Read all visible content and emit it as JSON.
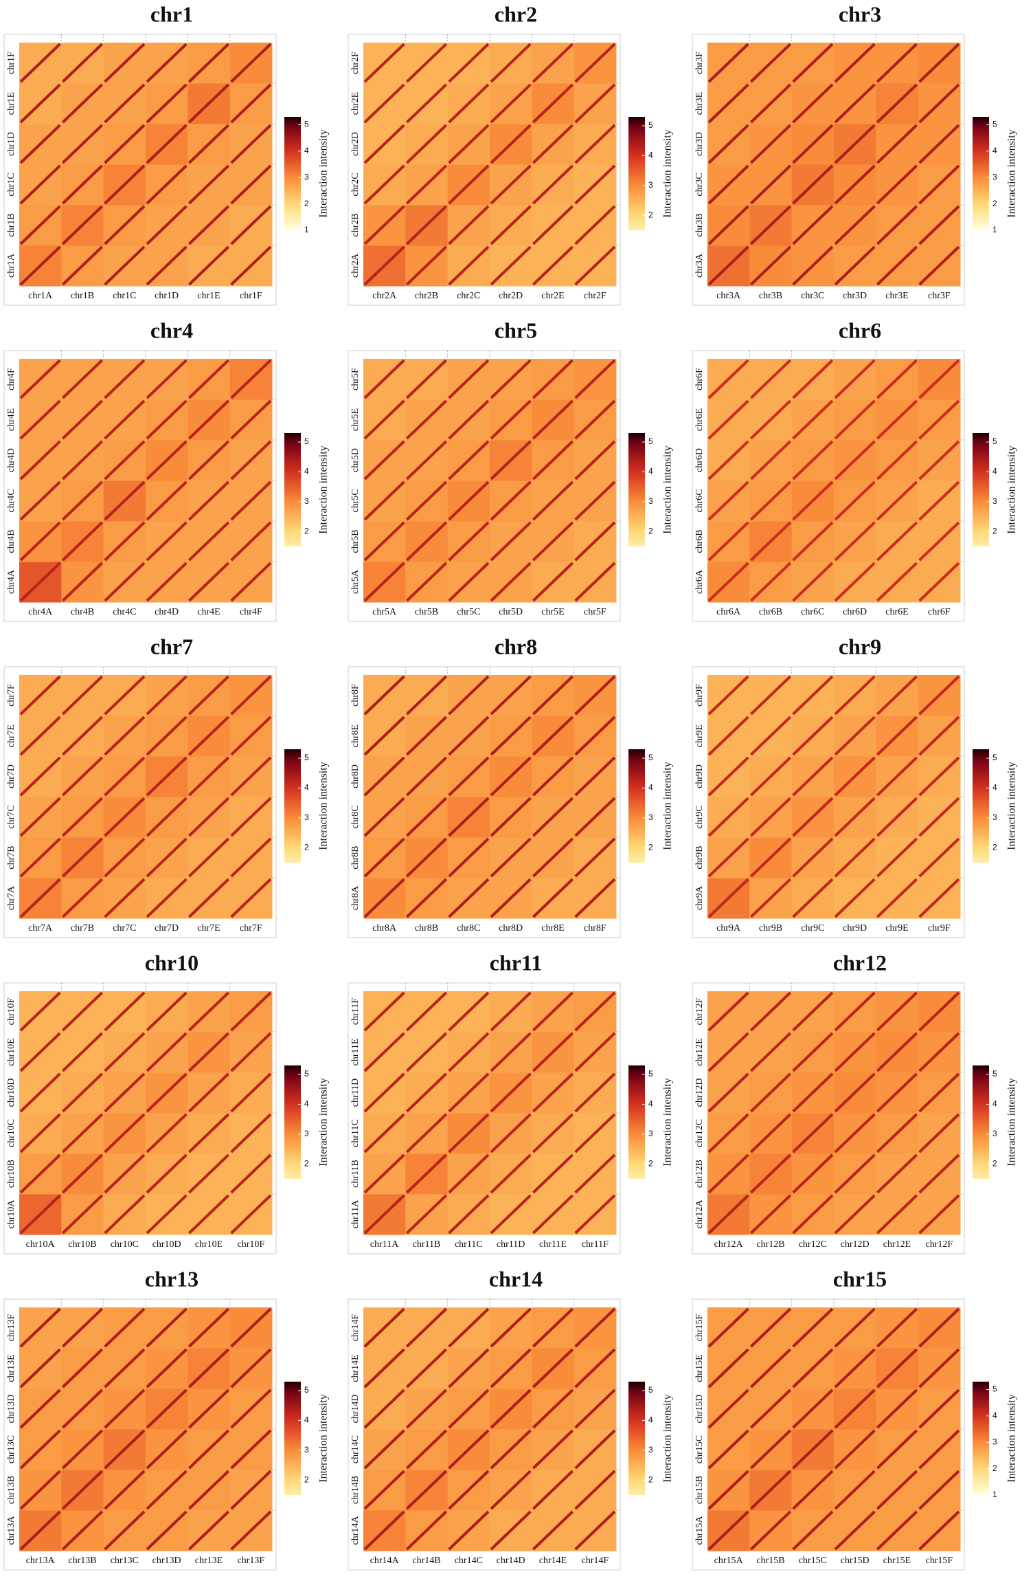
{
  "chart_data": [
    {
      "type": "heatmap",
      "title": "chr1",
      "categories": [
        "chr1A",
        "chr1B",
        "chr1C",
        "chr1D",
        "chr1E",
        "chr1F"
      ],
      "values": [
        [
          3.1,
          2.8,
          2.7,
          2.7,
          2.6,
          2.6
        ],
        [
          2.8,
          3.1,
          2.8,
          2.7,
          2.7,
          2.6
        ],
        [
          2.7,
          2.8,
          3.1,
          2.8,
          2.7,
          2.7
        ],
        [
          2.7,
          2.7,
          2.8,
          3.1,
          2.8,
          2.7
        ],
        [
          2.6,
          2.7,
          2.7,
          2.8,
          3.2,
          2.8
        ],
        [
          2.6,
          2.6,
          2.7,
          2.7,
          2.8,
          3.0
        ]
      ],
      "stripe_value": 4.4,
      "colorbar_label": "Interaction intensity",
      "clim": [
        1,
        5.3
      ],
      "cticks": [
        1,
        2,
        3,
        4,
        5
      ]
    },
    {
      "type": "heatmap",
      "title": "chr2",
      "categories": [
        "chr2A",
        "chr2B",
        "chr2C",
        "chr2D",
        "chr2E",
        "chr2F"
      ],
      "values": [
        [
          3.3,
          2.9,
          2.6,
          2.5,
          2.5,
          2.5
        ],
        [
          2.9,
          3.2,
          2.7,
          2.6,
          2.5,
          2.5
        ],
        [
          2.6,
          2.7,
          3.0,
          2.7,
          2.6,
          2.5
        ],
        [
          2.5,
          2.6,
          2.7,
          3.0,
          2.7,
          2.6
        ],
        [
          2.5,
          2.5,
          2.6,
          2.7,
          3.0,
          2.7
        ],
        [
          2.5,
          2.5,
          2.5,
          2.6,
          2.7,
          2.9
        ]
      ],
      "stripe_value": 4.3,
      "colorbar_label": "Interaction intensity",
      "clim": [
        1.5,
        5.3
      ],
      "cticks": [
        2,
        3,
        4,
        5
      ]
    },
    {
      "type": "heatmap",
      "title": "chr3",
      "categories": [
        "chr3A",
        "chr3B",
        "chr3C",
        "chr3D",
        "chr3E",
        "chr3F"
      ],
      "values": [
        [
          3.3,
          3.0,
          2.9,
          2.8,
          2.8,
          2.8
        ],
        [
          3.0,
          3.2,
          2.9,
          2.9,
          2.8,
          2.8
        ],
        [
          2.9,
          2.9,
          3.2,
          3.0,
          2.9,
          2.8
        ],
        [
          2.8,
          2.9,
          3.0,
          3.2,
          2.9,
          2.9
        ],
        [
          2.8,
          2.8,
          2.9,
          2.9,
          3.1,
          2.9
        ],
        [
          2.8,
          2.8,
          2.8,
          2.9,
          2.9,
          3.0
        ]
      ],
      "stripe_value": 4.4,
      "colorbar_label": "Interaction intensity",
      "clim": [
        1,
        5.3
      ],
      "cticks": [
        1,
        2,
        3,
        4,
        5
      ]
    },
    {
      "type": "heatmap",
      "title": "chr4",
      "categories": [
        "chr4A",
        "chr4B",
        "chr4C",
        "chr4D",
        "chr4E",
        "chr4F"
      ],
      "values": [
        [
          3.6,
          2.9,
          2.7,
          2.7,
          2.7,
          2.7
        ],
        [
          2.9,
          3.1,
          2.8,
          2.7,
          2.7,
          2.7
        ],
        [
          2.7,
          2.8,
          3.2,
          2.8,
          2.7,
          2.7
        ],
        [
          2.7,
          2.7,
          2.8,
          3.0,
          2.8,
          2.7
        ],
        [
          2.7,
          2.7,
          2.7,
          2.8,
          3.0,
          2.8
        ],
        [
          2.7,
          2.7,
          2.7,
          2.7,
          2.8,
          3.1
        ]
      ],
      "stripe_value": 4.3,
      "colorbar_label": "Interaction intensity",
      "clim": [
        1.5,
        5.3
      ],
      "cticks": [
        2,
        3,
        4,
        5
      ]
    },
    {
      "type": "heatmap",
      "title": "chr5",
      "categories": [
        "chr5A",
        "chr5B",
        "chr5C",
        "chr5D",
        "chr5E",
        "chr5F"
      ],
      "values": [
        [
          3.1,
          2.8,
          2.7,
          2.7,
          2.6,
          2.6
        ],
        [
          2.8,
          3.0,
          2.8,
          2.7,
          2.7,
          2.6
        ],
        [
          2.7,
          2.8,
          3.0,
          2.8,
          2.7,
          2.7
        ],
        [
          2.7,
          2.7,
          2.8,
          3.1,
          2.8,
          2.7
        ],
        [
          2.6,
          2.7,
          2.7,
          2.8,
          3.0,
          2.8
        ],
        [
          2.6,
          2.6,
          2.7,
          2.7,
          2.8,
          2.9
        ]
      ],
      "stripe_value": 4.3,
      "colorbar_label": "Interaction intensity",
      "clim": [
        1.5,
        5.3
      ],
      "cticks": [
        2,
        3,
        4,
        5
      ]
    },
    {
      "type": "heatmap",
      "title": "chr6",
      "categories": [
        "chr6A",
        "chr6B",
        "chr6C",
        "chr6D",
        "chr6E",
        "chr6F"
      ],
      "values": [
        [
          3.0,
          2.8,
          2.7,
          2.6,
          2.6,
          2.6
        ],
        [
          2.8,
          3.1,
          2.8,
          2.7,
          2.6,
          2.6
        ],
        [
          2.7,
          2.8,
          3.0,
          2.8,
          2.7,
          2.6
        ],
        [
          2.6,
          2.7,
          2.8,
          2.9,
          2.8,
          2.7
        ],
        [
          2.6,
          2.6,
          2.7,
          2.8,
          2.9,
          2.8
        ],
        [
          2.6,
          2.6,
          2.6,
          2.7,
          2.8,
          3.0
        ]
      ],
      "stripe_value": 4.1,
      "colorbar_label": "Interaction intensity",
      "clim": [
        1.5,
        5.3
      ],
      "cticks": [
        2,
        3,
        4,
        5
      ]
    },
    {
      "type": "heatmap",
      "title": "chr7",
      "categories": [
        "chr7A",
        "chr7B",
        "chr7C",
        "chr7D",
        "chr7E",
        "chr7F"
      ],
      "values": [
        [
          3.1,
          2.8,
          2.7,
          2.6,
          2.6,
          2.6
        ],
        [
          2.8,
          3.1,
          2.8,
          2.7,
          2.6,
          2.6
        ],
        [
          2.7,
          2.8,
          3.0,
          2.8,
          2.7,
          2.6
        ],
        [
          2.6,
          2.7,
          2.8,
          3.1,
          2.8,
          2.7
        ],
        [
          2.6,
          2.6,
          2.7,
          2.8,
          3.0,
          2.8
        ],
        [
          2.6,
          2.6,
          2.6,
          2.7,
          2.8,
          2.9
        ]
      ],
      "stripe_value": 4.3,
      "colorbar_label": "Interaction intensity",
      "clim": [
        1.5,
        5.3
      ],
      "cticks": [
        2,
        3,
        4,
        5
      ]
    },
    {
      "type": "heatmap",
      "title": "chr8",
      "categories": [
        "chr8A",
        "chr8B",
        "chr8C",
        "chr8D",
        "chr8E",
        "chr8F"
      ],
      "values": [
        [
          3.0,
          2.8,
          2.7,
          2.7,
          2.6,
          2.6
        ],
        [
          2.8,
          3.0,
          2.8,
          2.7,
          2.7,
          2.6
        ],
        [
          2.7,
          2.8,
          3.1,
          2.8,
          2.7,
          2.7
        ],
        [
          2.7,
          2.7,
          2.8,
          3.0,
          2.8,
          2.7
        ],
        [
          2.6,
          2.7,
          2.7,
          2.8,
          3.0,
          2.8
        ],
        [
          2.6,
          2.6,
          2.7,
          2.7,
          2.8,
          2.9
        ]
      ],
      "stripe_value": 4.4,
      "colorbar_label": "Interaction intensity",
      "clim": [
        1.5,
        5.3
      ],
      "cticks": [
        2,
        3,
        4,
        5
      ]
    },
    {
      "type": "heatmap",
      "title": "chr9",
      "categories": [
        "chr9A",
        "chr9B",
        "chr9C",
        "chr9D",
        "chr9E",
        "chr9F"
      ],
      "values": [
        [
          3.2,
          2.7,
          2.6,
          2.5,
          2.5,
          2.5
        ],
        [
          2.7,
          3.0,
          2.7,
          2.6,
          2.5,
          2.5
        ],
        [
          2.6,
          2.7,
          2.9,
          2.7,
          2.6,
          2.5
        ],
        [
          2.5,
          2.6,
          2.7,
          2.9,
          2.7,
          2.6
        ],
        [
          2.5,
          2.5,
          2.6,
          2.7,
          2.9,
          2.7
        ],
        [
          2.5,
          2.5,
          2.5,
          2.6,
          2.7,
          2.9
        ]
      ],
      "stripe_value": 4.2,
      "colorbar_label": "Interaction intensity",
      "clim": [
        1.5,
        5.3
      ],
      "cticks": [
        2,
        3,
        4,
        5
      ]
    },
    {
      "type": "heatmap",
      "title": "chr10",
      "categories": [
        "chr10A",
        "chr10B",
        "chr10C",
        "chr10D",
        "chr10E",
        "chr10F"
      ],
      "values": [
        [
          3.4,
          2.8,
          2.6,
          2.5,
          2.5,
          2.5
        ],
        [
          2.8,
          3.0,
          2.7,
          2.6,
          2.5,
          2.5
        ],
        [
          2.6,
          2.7,
          2.9,
          2.7,
          2.6,
          2.5
        ],
        [
          2.5,
          2.6,
          2.7,
          2.9,
          2.7,
          2.6
        ],
        [
          2.5,
          2.5,
          2.6,
          2.7,
          2.9,
          2.7
        ],
        [
          2.5,
          2.5,
          2.5,
          2.6,
          2.7,
          2.8
        ]
      ],
      "stripe_value": 4.3,
      "colorbar_label": "Interaction intensity",
      "clim": [
        1.5,
        5.3
      ],
      "cticks": [
        2,
        3,
        4,
        5
      ]
    },
    {
      "type": "heatmap",
      "title": "chr11",
      "categories": [
        "chr11A",
        "chr11B",
        "chr11C",
        "chr11D",
        "chr11E",
        "chr11F"
      ],
      "values": [
        [
          3.2,
          2.7,
          2.6,
          2.5,
          2.5,
          2.5
        ],
        [
          2.7,
          3.1,
          2.7,
          2.6,
          2.5,
          2.5
        ],
        [
          2.6,
          2.7,
          3.0,
          2.7,
          2.6,
          2.5
        ],
        [
          2.5,
          2.6,
          2.7,
          2.9,
          2.7,
          2.6
        ],
        [
          2.5,
          2.5,
          2.6,
          2.7,
          2.9,
          2.7
        ],
        [
          2.5,
          2.5,
          2.5,
          2.6,
          2.7,
          2.8
        ]
      ],
      "stripe_value": 4.3,
      "colorbar_label": "Interaction intensity",
      "clim": [
        1.5,
        5.3
      ],
      "cticks": [
        2,
        3,
        4,
        5
      ]
    },
    {
      "type": "heatmap",
      "title": "chr12",
      "categories": [
        "chr12A",
        "chr12B",
        "chr12C",
        "chr12D",
        "chr12E",
        "chr12F"
      ],
      "values": [
        [
          3.2,
          2.9,
          2.8,
          2.7,
          2.7,
          2.7
        ],
        [
          2.9,
          3.1,
          2.9,
          2.8,
          2.7,
          2.7
        ],
        [
          2.8,
          2.9,
          3.1,
          2.9,
          2.8,
          2.7
        ],
        [
          2.7,
          2.8,
          2.9,
          3.0,
          2.9,
          2.8
        ],
        [
          2.7,
          2.7,
          2.8,
          2.9,
          3.0,
          2.9
        ],
        [
          2.7,
          2.7,
          2.7,
          2.8,
          2.9,
          3.0
        ]
      ],
      "stripe_value": 4.3,
      "colorbar_label": "Interaction intensity",
      "clim": [
        1.5,
        5.3
      ],
      "cticks": [
        2,
        3,
        4,
        5
      ]
    },
    {
      "type": "heatmap",
      "title": "chr13",
      "categories": [
        "chr13A",
        "chr13B",
        "chr13C",
        "chr13D",
        "chr13E",
        "chr13F"
      ],
      "values": [
        [
          3.2,
          2.9,
          2.8,
          2.8,
          2.7,
          2.7
        ],
        [
          2.9,
          3.2,
          2.9,
          2.8,
          2.8,
          2.7
        ],
        [
          2.8,
          2.9,
          3.2,
          2.9,
          2.8,
          2.8
        ],
        [
          2.8,
          2.8,
          2.9,
          3.1,
          2.9,
          2.8
        ],
        [
          2.7,
          2.8,
          2.8,
          2.9,
          3.1,
          2.9
        ],
        [
          2.7,
          2.7,
          2.8,
          2.8,
          2.9,
          3.0
        ]
      ],
      "stripe_value": 4.4,
      "colorbar_label": "Interaction intensity",
      "clim": [
        1.5,
        5.3
      ],
      "cticks": [
        2,
        3,
        4,
        5
      ]
    },
    {
      "type": "heatmap",
      "title": "chr14",
      "categories": [
        "chr14A",
        "chr14B",
        "chr14C",
        "chr14D",
        "chr14E",
        "chr14F"
      ],
      "values": [
        [
          3.1,
          2.8,
          2.7,
          2.6,
          2.6,
          2.6
        ],
        [
          2.8,
          3.1,
          2.8,
          2.7,
          2.6,
          2.6
        ],
        [
          2.7,
          2.8,
          3.0,
          2.8,
          2.7,
          2.6
        ],
        [
          2.6,
          2.7,
          2.8,
          3.0,
          2.8,
          2.7
        ],
        [
          2.6,
          2.6,
          2.7,
          2.8,
          3.0,
          2.8
        ],
        [
          2.6,
          2.6,
          2.6,
          2.7,
          2.8,
          2.9
        ]
      ],
      "stripe_value": 4.4,
      "colorbar_label": "Interaction intensity",
      "clim": [
        1.5,
        5.3
      ],
      "cticks": [
        2,
        3,
        4,
        5
      ]
    },
    {
      "type": "heatmap",
      "title": "chr15",
      "categories": [
        "chr15A",
        "chr15B",
        "chr15C",
        "chr15D",
        "chr15E",
        "chr15F"
      ],
      "values": [
        [
          3.2,
          2.9,
          2.8,
          2.8,
          2.8,
          2.8
        ],
        [
          2.9,
          3.2,
          2.9,
          2.8,
          2.8,
          2.8
        ],
        [
          2.8,
          2.9,
          3.2,
          2.9,
          2.8,
          2.8
        ],
        [
          2.8,
          2.8,
          2.9,
          3.1,
          2.9,
          2.8
        ],
        [
          2.8,
          2.8,
          2.8,
          2.9,
          3.1,
          2.9
        ],
        [
          2.8,
          2.8,
          2.8,
          2.8,
          2.9,
          3.0
        ]
      ],
      "stripe_value": 4.4,
      "colorbar_label": "Interaction intensity",
      "clim": [
        1,
        5.3
      ],
      "cticks": [
        1,
        2,
        3,
        4,
        5
      ]
    }
  ]
}
